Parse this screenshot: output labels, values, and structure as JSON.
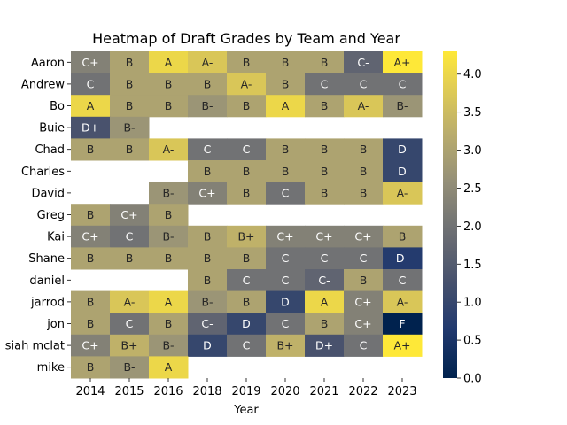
{
  "chart_data": {
    "type": "heatmap",
    "title": "Heatmap of Draft Grades by Team and Year",
    "xlabel": "Year",
    "ylabel": "",
    "x": [
      "2014",
      "2015",
      "2016",
      "2018",
      "2019",
      "2020",
      "2021",
      "2022",
      "2023"
    ],
    "y": [
      "Aaron",
      "Andrew",
      "Bo",
      "Buie",
      "Chad",
      "Charles",
      "David",
      "Greg",
      "Kai",
      "Shane",
      "daniel",
      "jarrod",
      "jon",
      "siah mclat",
      "mike"
    ],
    "grades": [
      [
        "C+",
        "B",
        "A",
        "A-",
        "B",
        "B",
        "B",
        "C-",
        "A+"
      ],
      [
        "C",
        "B",
        "B",
        "B",
        "A-",
        "B",
        "C",
        "C",
        "C"
      ],
      [
        "A",
        "B",
        "B",
        "B-",
        "B",
        "A",
        "B",
        "A-",
        "B-"
      ],
      [
        "D+",
        "B-",
        null,
        null,
        null,
        null,
        null,
        null,
        null
      ],
      [
        "B",
        "B",
        "A-",
        "C",
        "C",
        "B",
        "B",
        "B",
        "D"
      ],
      [
        null,
        null,
        null,
        "B",
        "B",
        "B",
        "B",
        "B",
        "D"
      ],
      [
        null,
        null,
        "B-",
        "C+",
        "B",
        "C",
        "B",
        "B",
        "A-"
      ],
      [
        "B",
        "C+",
        "B",
        null,
        null,
        null,
        null,
        null,
        null
      ],
      [
        "C+",
        "C",
        "B-",
        "B",
        "B+",
        "C+",
        "C+",
        "C+",
        "B"
      ],
      [
        "B",
        "B",
        "B",
        "B",
        "B",
        "C",
        "C",
        "C",
        "D-"
      ],
      [
        null,
        null,
        null,
        "B",
        "C",
        "C",
        "C-",
        "B",
        "C"
      ],
      [
        "B",
        "A-",
        "A",
        "B-",
        "B",
        "D",
        "A",
        "C+",
        "A-"
      ],
      [
        "B",
        "C",
        "B",
        "C-",
        "D",
        "C",
        "B",
        "C+",
        "F"
      ],
      [
        "C+",
        "B+",
        "B-",
        "D",
        "C",
        "B+",
        "D+",
        "C",
        "A+"
      ],
      [
        "B",
        "B-",
        "A",
        null,
        null,
        null,
        null,
        null,
        null
      ]
    ],
    "grade_values": {
      "A+": 4.3,
      "A": 4.0,
      "A-": 3.7,
      "B+": 3.3,
      "B": 3.0,
      "B-": 2.7,
      "C+": 2.3,
      "C": 2.0,
      "C-": 1.7,
      "D+": 1.3,
      "D": 1.0,
      "D-": 0.7,
      "F": 0.0
    },
    "colorscale": "cividis",
    "vmin": 0.0,
    "vmax": 4.3,
    "colorbar_ticks": [
      "0.0",
      "0.5",
      "1.0",
      "1.5",
      "2.0",
      "2.5",
      "3.0",
      "3.5",
      "4.0"
    ],
    "grid": false
  }
}
